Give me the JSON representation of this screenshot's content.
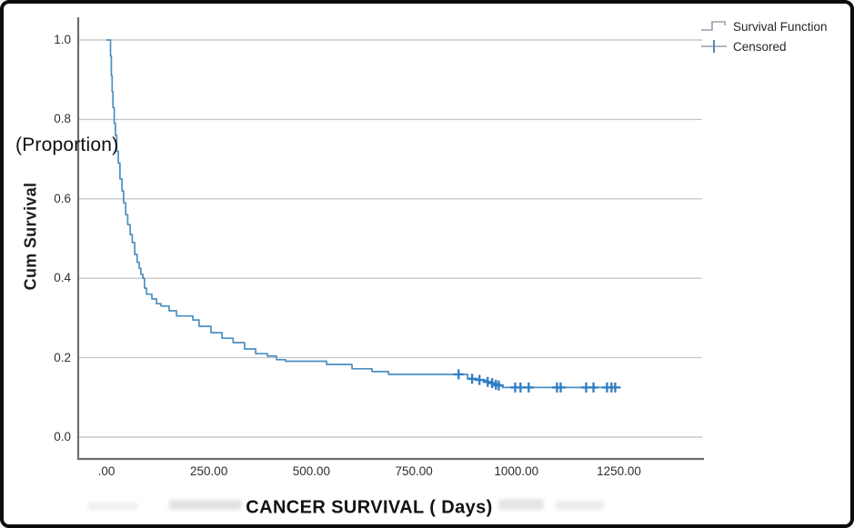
{
  "window": {
    "background": "#ffffff",
    "border_color": "#0c0c0c"
  },
  "axes": {
    "y_label": "Cum Survival",
    "y_annotation": "(Proportion)",
    "x_label": "CANCER SURVIVAL ( Days)"
  },
  "legend": {
    "position": "top-right-outside",
    "items": [
      {
        "label": "Survival Function",
        "symbol": "step-line-icon",
        "color": "#95a1ab"
      },
      {
        "label": "Censored",
        "symbol": "plus-icon",
        "color": "#5d89ad"
      }
    ]
  },
  "chart_data": {
    "type": "line",
    "subtype": "kaplan_meier_step_function",
    "title": "",
    "xlabel": "CANCER SURVIVAL ( Days)",
    "ylabel": "Cum Survival (Proportion)",
    "grid": "horizontal-only",
    "legend_position": "top-right-outside",
    "xlim": [
      -71,
      1459
    ],
    "ylim": [
      -0.055,
      1.057
    ],
    "x_ticks": {
      "values": [
        0,
        250,
        500,
        750,
        1000,
        1250
      ],
      "labels": [
        ".00",
        "250.00",
        "500.00",
        "750.00",
        "1000.00",
        "1250.00"
      ]
    },
    "y_ticks": {
      "values": [
        0.0,
        0.2,
        0.4,
        0.6,
        0.8,
        1.0
      ],
      "labels": [
        "0.0",
        "0.2",
        "0.4",
        "0.6",
        "0.8",
        "1.0"
      ]
    },
    "colors": {
      "curve": "#4a8fc2",
      "censored_marker": "#2e7cc3",
      "gridline": "#c9c9c9",
      "axis_line": "#6e6e6e"
    },
    "series": [
      {
        "name": "Survival Function",
        "render": "step-after",
        "points_day_survival": [
          [
            0,
            1.0
          ],
          [
            8,
            1.0
          ],
          [
            10,
            0.96
          ],
          [
            12,
            0.91
          ],
          [
            14,
            0.87
          ],
          [
            16,
            0.83
          ],
          [
            19,
            0.79
          ],
          [
            22,
            0.76
          ],
          [
            25,
            0.72
          ],
          [
            29,
            0.69
          ],
          [
            33,
            0.65
          ],
          [
            38,
            0.62
          ],
          [
            42,
            0.59
          ],
          [
            47,
            0.56
          ],
          [
            52,
            0.535
          ],
          [
            58,
            0.51
          ],
          [
            63,
            0.49
          ],
          [
            69,
            0.46
          ],
          [
            75,
            0.44
          ],
          [
            80,
            0.425
          ],
          [
            84,
            0.41
          ],
          [
            89,
            0.4
          ],
          [
            93,
            0.375
          ],
          [
            98,
            0.36
          ],
          [
            111,
            0.348
          ],
          [
            122,
            0.336
          ],
          [
            133,
            0.33
          ],
          [
            153,
            0.318
          ],
          [
            171,
            0.305
          ],
          [
            211,
            0.295
          ],
          [
            226,
            0.279
          ],
          [
            255,
            0.263
          ],
          [
            282,
            0.249
          ],
          [
            309,
            0.238
          ],
          [
            337,
            0.222
          ],
          [
            364,
            0.21
          ],
          [
            393,
            0.204
          ],
          [
            415,
            0.195
          ],
          [
            437,
            0.191
          ],
          [
            537,
            0.183
          ],
          [
            599,
            0.172
          ],
          [
            648,
            0.165
          ],
          [
            688,
            0.158
          ],
          [
            881,
            0.147
          ],
          [
            905,
            0.144
          ],
          [
            925,
            0.139
          ],
          [
            938,
            0.136
          ],
          [
            947,
            0.132
          ],
          [
            955,
            0.13
          ],
          [
            966,
            0.125
          ],
          [
            1255,
            0.125
          ]
        ]
      },
      {
        "name": "Censored",
        "render": "plus-markers",
        "points_day_survival": [
          [
            859,
            0.158
          ],
          [
            892,
            0.147
          ],
          [
            910,
            0.144
          ],
          [
            930,
            0.139
          ],
          [
            941,
            0.136
          ],
          [
            950,
            0.132
          ],
          [
            957,
            0.13
          ],
          [
            997,
            0.125
          ],
          [
            1010,
            0.125
          ],
          [
            1030,
            0.125
          ],
          [
            1099,
            0.125
          ],
          [
            1108,
            0.125
          ],
          [
            1170,
            0.125
          ],
          [
            1188,
            0.125
          ],
          [
            1221,
            0.125
          ],
          [
            1232,
            0.125
          ],
          [
            1241,
            0.125
          ]
        ]
      }
    ]
  }
}
